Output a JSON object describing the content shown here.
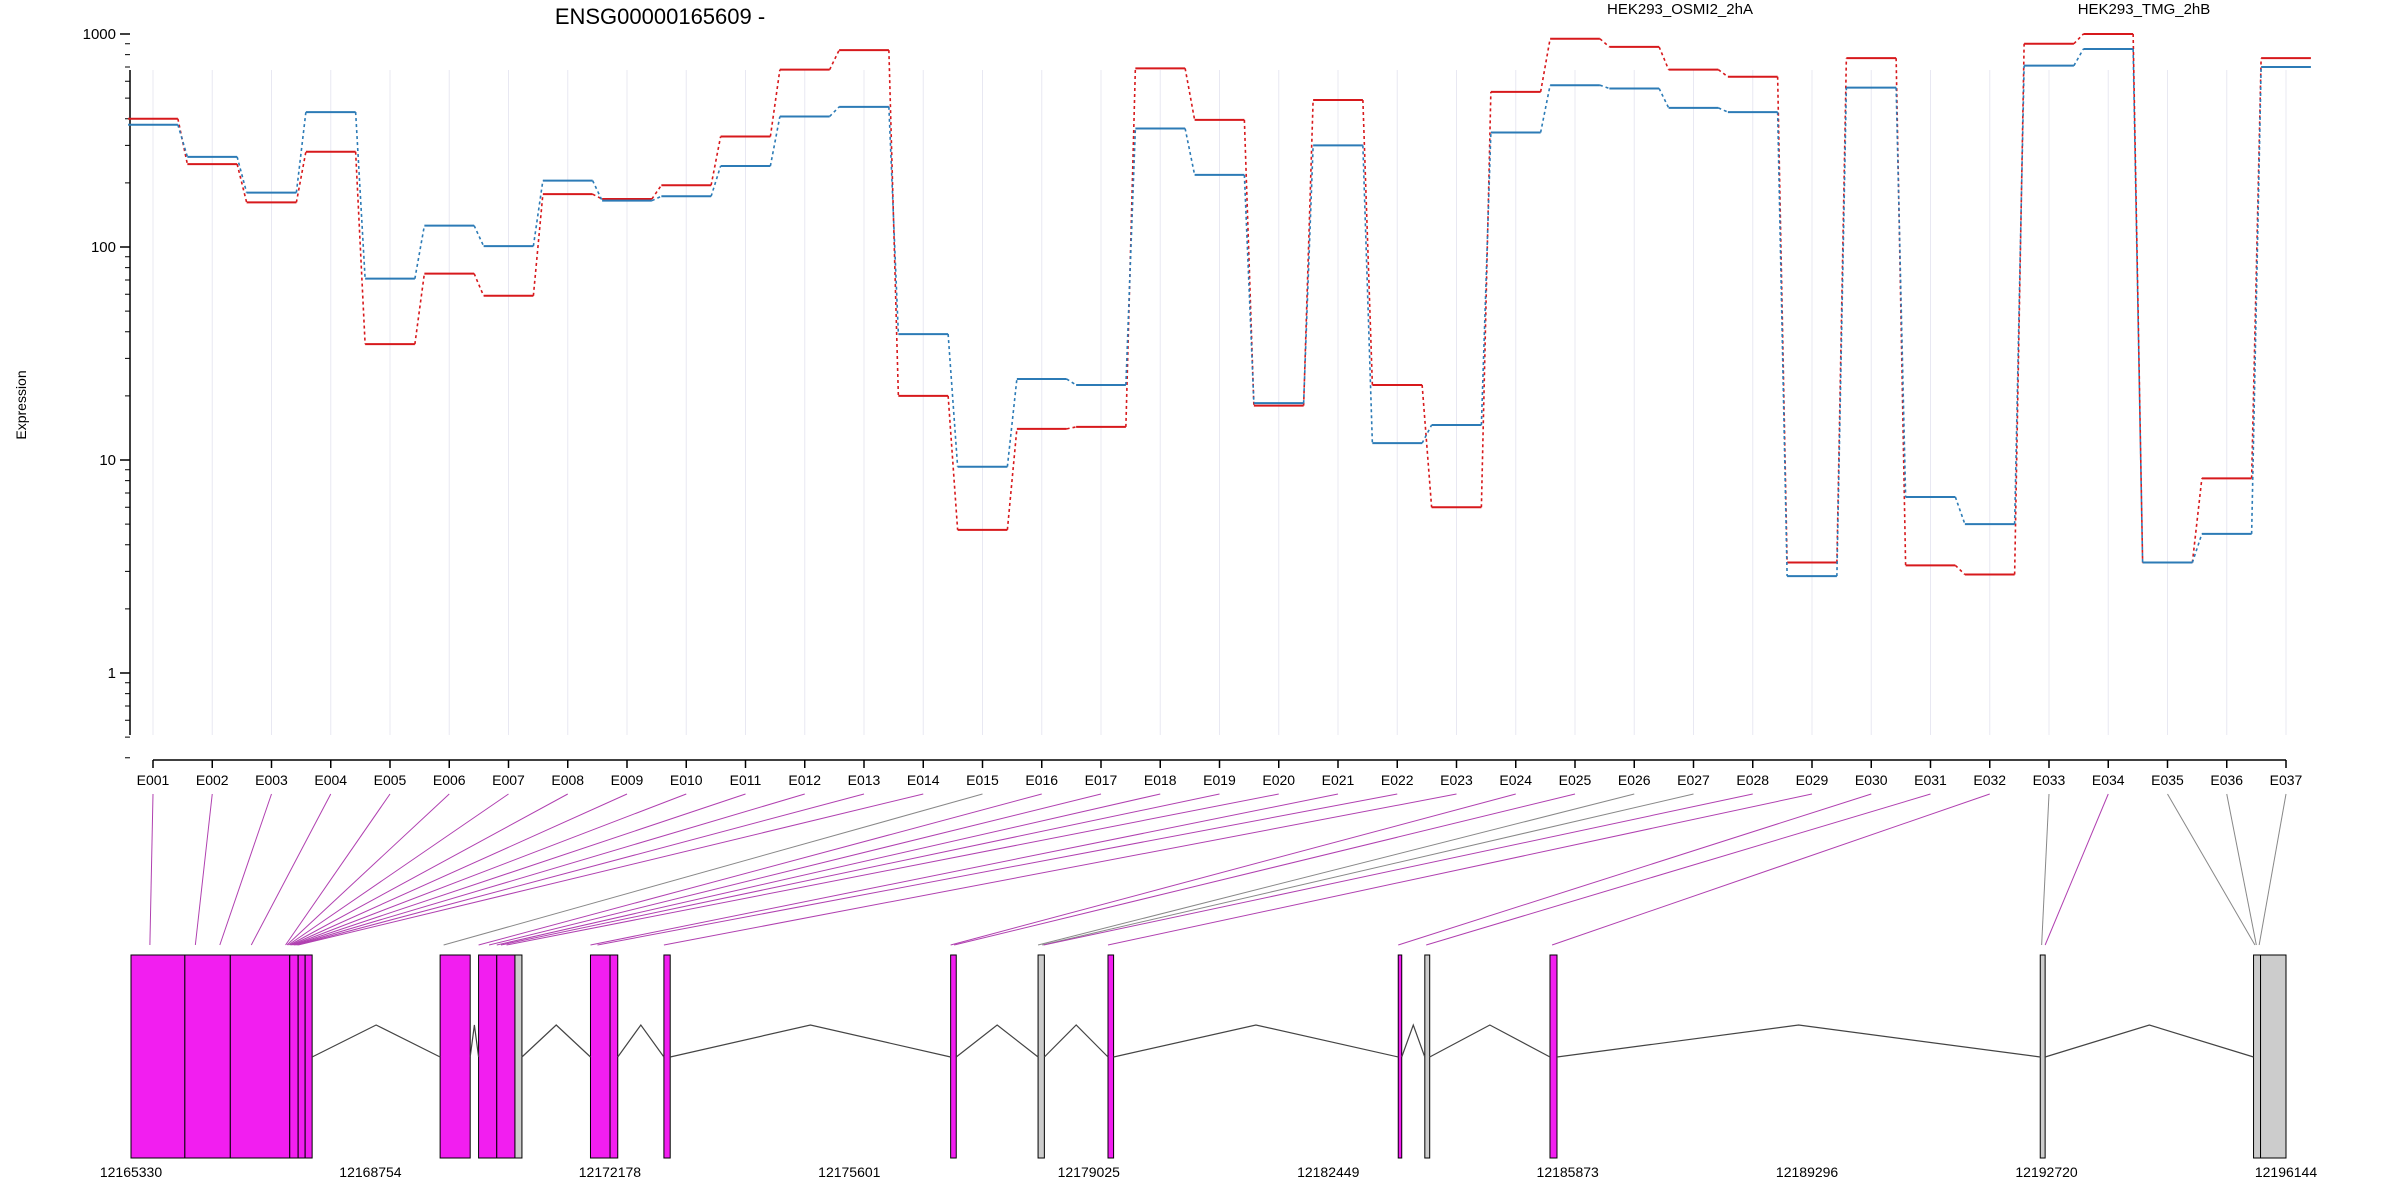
{
  "chart_data": {
    "type": "line",
    "title": "ENSG00000165609 -",
    "ylabel": "Expression",
    "y_scale": "log",
    "ylim": [
      0.4,
      1000
    ],
    "y_ticks": [
      1,
      10,
      100,
      1000
    ],
    "y_tick_labels": [
      "1",
      "10",
      "100",
      "1000"
    ],
    "categories": [
      "E001",
      "E002",
      "E003",
      "E004",
      "E005",
      "E006",
      "E007",
      "E008",
      "E009",
      "E010",
      "E011",
      "E012",
      "E013",
      "E014",
      "E015",
      "E016",
      "E017",
      "E018",
      "E019",
      "E020",
      "E021",
      "E022",
      "E023",
      "E024",
      "E025",
      "E026",
      "E027",
      "E028",
      "E029",
      "E030",
      "E031",
      "E032",
      "E033",
      "E034",
      "E035",
      "E036",
      "E037"
    ],
    "legend_placement": "top",
    "series": [
      {
        "name": "HEK293_OSMI2_2hA",
        "color": "#d7191c",
        "values": [
          400,
          245,
          162,
          280,
          35,
          75,
          59,
          177,
          168,
          195,
          330,
          680,
          840,
          20,
          4.7,
          14,
          14.3,
          690,
          395,
          18,
          490,
          22.5,
          6,
          535,
          950,
          870,
          680,
          630,
          3.3,
          770,
          3.2,
          2.9,
          900,
          1000,
          3.3,
          8.2,
          770
        ]
      },
      {
        "name": "HEK293_TMG_2hB",
        "color": "#2c7bb6",
        "values": [
          375,
          265,
          180,
          430,
          71,
          126,
          101,
          205,
          165,
          173,
          240,
          410,
          455,
          39,
          9.3,
          24,
          22.5,
          360,
          218,
          18.5,
          300,
          12,
          14.6,
          345,
          575,
          555,
          450,
          430,
          2.85,
          560,
          6.7,
          5,
          710,
          850,
          3.3,
          4.5,
          700
        ]
      }
    ],
    "gene_model": {
      "x_ticks": [
        12165330,
        12168754,
        12172178,
        12175601,
        12179025,
        12182449,
        12185873,
        12189296,
        12192720,
        12196144
      ],
      "x_tick_labels": [
        "12165330",
        "12168754",
        "12172178",
        "12175601",
        "12179025",
        "12182449",
        "12185873",
        "12189296",
        "12192720",
        "12196144"
      ],
      "exon_fill": "#f21ef0",
      "inactive_fill": "#cccccc"
    }
  }
}
